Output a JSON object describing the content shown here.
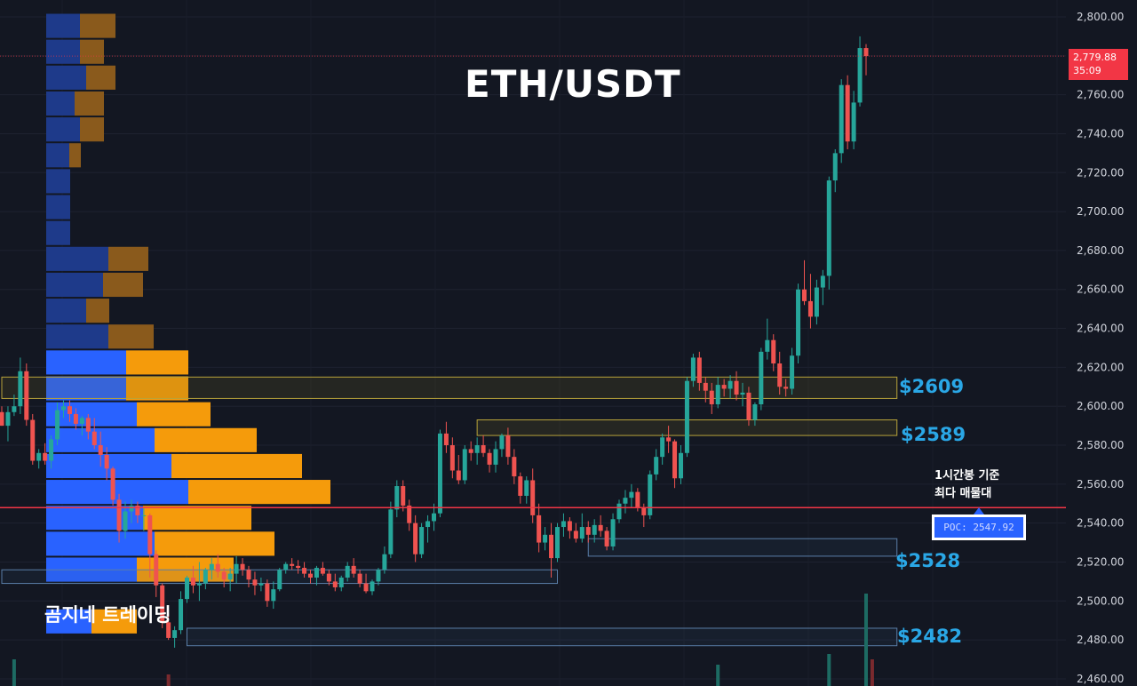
{
  "header": {
    "title": "ETH/USDT"
  },
  "watermark": {
    "brand": "곰지네 트레이딩"
  },
  "price_tag": {
    "price": "2,779.88",
    "countdown": "35:09"
  },
  "poc": {
    "label": "POC: 2547.92",
    "note_line1": "1시간봉 기준",
    "note_line2": "최다 매물대"
  },
  "levels": [
    {
      "label": "$2609",
      "value": 2609
    },
    {
      "label": "$2589",
      "value": 2589
    },
    {
      "label": "$2528",
      "value": 2528
    },
    {
      "label": "$2482",
      "value": 2482
    }
  ],
  "colors": {
    "background": "#131722",
    "up": "#26a69a",
    "down": "#ef5350",
    "poc_line": "#f23645",
    "level_text": "#2aa7e6",
    "profile_blue": "#2962ff",
    "profile_orange": "#f59b0b"
  },
  "chart_data": {
    "type": "candlestick",
    "title": "ETH/USDT",
    "y_axis": {
      "ticks": [
        "2,800.00",
        "2,780.00",
        "2,760.00",
        "2,740.00",
        "2,720.00",
        "2,700.00",
        "2,680.00",
        "2,660.00",
        "2,640.00",
        "2,620.00",
        "2,600.00",
        "2,580.00",
        "2,560.00",
        "2,540.00",
        "2,520.00",
        "2,500.00",
        "2,480.00",
        "2,460.00"
      ],
      "ylim": [
        2456,
        2806
      ]
    },
    "last_price": 2779.88,
    "poc_price": 2547.92,
    "volume_profile": {
      "price_step": 13.3,
      "rows": [
        {
          "price": 2795.4,
          "up": 38,
          "down": 40
        },
        {
          "price": 2782.1,
          "up": 38,
          "down": 27
        },
        {
          "price": 2768.8,
          "up": 45,
          "down": 33
        },
        {
          "price": 2755.5,
          "up": 32,
          "down": 33
        },
        {
          "price": 2742.2,
          "up": 38,
          "down": 27
        },
        {
          "price": 2728.9,
          "up": 26,
          "down": 13
        },
        {
          "price": 2715.6,
          "up": 27,
          "down": 0
        },
        {
          "price": 2702.3,
          "up": 27,
          "down": 0
        },
        {
          "price": 2689.0,
          "up": 27,
          "down": 0
        },
        {
          "price": 2675.7,
          "up": 70,
          "down": 45
        },
        {
          "price": 2662.4,
          "up": 64,
          "down": 45
        },
        {
          "price": 2649.1,
          "up": 45,
          "down": 26
        },
        {
          "price": 2635.8,
          "up": 70,
          "down": 51
        },
        {
          "price": 2622.5,
          "up": 90,
          "down": 70
        },
        {
          "price": 2609.2,
          "up": 90,
          "down": 70
        },
        {
          "price": 2595.9,
          "up": 102,
          "down": 83
        },
        {
          "price": 2582.6,
          "up": 122,
          "down": 115
        },
        {
          "price": 2569.3,
          "up": 141,
          "down": 147
        },
        {
          "price": 2556.0,
          "up": 160,
          "down": 160
        },
        {
          "price": 2542.7,
          "up": 109,
          "down": 122
        },
        {
          "price": 2529.4,
          "up": 122,
          "down": 135
        },
        {
          "price": 2516.1,
          "up": 102,
          "down": 109
        },
        {
          "price": 2502.8,
          "up": 0,
          "down": 0
        },
        {
          "price": 2489.5,
          "up": 51,
          "down": 51
        }
      ]
    },
    "zones": [
      {
        "low": 2604,
        "high": 2615,
        "start_bar": 0,
        "end_bar": 145
      },
      {
        "low": 2585,
        "high": 2593,
        "start_bar": 77,
        "end_bar": 145
      },
      {
        "low": 2523,
        "high": 2532,
        "start_bar": 95,
        "end_bar": 145
      },
      {
        "low": 2509,
        "high": 2516,
        "start_bar": 0,
        "end_bar": 90
      },
      {
        "low": 2477,
        "high": 2486,
        "start_bar": 30,
        "end_bar": 145
      }
    ],
    "ohlc": [
      [
        2597,
        2600,
        2590,
        2590
      ],
      [
        2590,
        2600,
        2582,
        2597
      ],
      [
        2597,
        2606,
        2595,
        2600
      ],
      [
        2600,
        2625,
        2596,
        2618
      ],
      [
        2618,
        2622,
        2590,
        2593
      ],
      [
        2593,
        2596,
        2570,
        2572
      ],
      [
        2572,
        2578,
        2568,
        2576
      ],
      [
        2576,
        2581,
        2570,
        2572
      ],
      [
        2572,
        2585,
        2568,
        2583
      ],
      [
        2583,
        2602,
        2580,
        2598
      ],
      [
        2598,
        2603,
        2594,
        2600
      ],
      [
        2600,
        2603,
        2592,
        2596
      ],
      [
        2596,
        2599,
        2588,
        2591
      ],
      [
        2591,
        2595,
        2585,
        2594
      ],
      [
        2594,
        2596,
        2583,
        2587
      ],
      [
        2587,
        2594,
        2578,
        2580
      ],
      [
        2580,
        2587,
        2569,
        2575
      ],
      [
        2575,
        2579,
        2562,
        2568
      ],
      [
        2568,
        2569,
        2549,
        2552
      ],
      [
        2552,
        2555,
        2530,
        2536
      ],
      [
        2536,
        2551,
        2532,
        2546
      ],
      [
        2546,
        2552,
        2540,
        2549
      ],
      [
        2549,
        2551,
        2540,
        2544
      ],
      [
        2544,
        2548,
        2536,
        2544
      ],
      [
        2544,
        2545,
        2512,
        2524
      ],
      [
        2524,
        2526,
        2502,
        2508
      ],
      [
        2508,
        2509,
        2486,
        2489
      ],
      [
        2489,
        2494,
        2480,
        2481
      ],
      [
        2481,
        2487,
        2476,
        2485
      ],
      [
        2485,
        2505,
        2483,
        2501
      ],
      [
        2501,
        2513,
        2499,
        2512
      ],
      [
        2512,
        2518,
        2504,
        2508
      ],
      [
        2508,
        2520,
        2500,
        2509
      ],
      [
        2509,
        2517,
        2506,
        2516
      ],
      [
        2516,
        2522,
        2511,
        2519
      ],
      [
        2519,
        2524,
        2512,
        2515
      ],
      [
        2515,
        2517,
        2507,
        2511
      ],
      [
        2511,
        2517,
        2505,
        2514
      ],
      [
        2514,
        2523,
        2509,
        2519
      ],
      [
        2519,
        2522,
        2513,
        2516
      ],
      [
        2516,
        2518,
        2507,
        2511
      ],
      [
        2511,
        2515,
        2503,
        2508
      ],
      [
        2508,
        2512,
        2505,
        2509
      ],
      [
        2509,
        2511,
        2497,
        2500
      ],
      [
        2500,
        2510,
        2496,
        2506
      ],
      [
        2506,
        2517,
        2505,
        2516
      ],
      [
        2516,
        2520,
        2514,
        2519
      ],
      [
        2519,
        2522,
        2516,
        2518
      ],
      [
        2518,
        2521,
        2514,
        2517
      ],
      [
        2517,
        2520,
        2512,
        2514
      ],
      [
        2514,
        2516,
        2509,
        2512
      ],
      [
        2512,
        2518,
        2508,
        2517
      ],
      [
        2517,
        2520,
        2513,
        2514
      ],
      [
        2514,
        2516,
        2508,
        2510
      ],
      [
        2510,
        2514,
        2505,
        2507
      ],
      [
        2507,
        2513,
        2505,
        2512
      ],
      [
        2512,
        2520,
        2510,
        2518
      ],
      [
        2518,
        2522,
        2512,
        2514
      ],
      [
        2514,
        2516,
        2507,
        2509
      ],
      [
        2509,
        2514,
        2504,
        2505
      ],
      [
        2505,
        2511,
        2503,
        2510
      ],
      [
        2510,
        2517,
        2508,
        2516
      ],
      [
        2516,
        2528,
        2514,
        2524
      ],
      [
        2524,
        2551,
        2522,
        2547
      ],
      [
        2547,
        2562,
        2543,
        2559
      ],
      [
        2559,
        2562,
        2546,
        2549
      ],
      [
        2549,
        2552,
        2536,
        2540
      ],
      [
        2540,
        2544,
        2520,
        2524
      ],
      [
        2524,
        2540,
        2522,
        2538
      ],
      [
        2538,
        2544,
        2530,
        2541
      ],
      [
        2541,
        2550,
        2536,
        2545
      ],
      [
        2545,
        2588,
        2543,
        2586
      ],
      [
        2586,
        2592,
        2576,
        2580
      ],
      [
        2580,
        2584,
        2563,
        2567
      ],
      [
        2567,
        2575,
        2560,
        2562
      ],
      [
        2562,
        2580,
        2560,
        2578
      ],
      [
        2578,
        2582,
        2572,
        2576
      ],
      [
        2576,
        2584,
        2570,
        2580
      ],
      [
        2580,
        2585,
        2574,
        2576
      ],
      [
        2576,
        2578,
        2566,
        2570
      ],
      [
        2570,
        2582,
        2566,
        2578
      ],
      [
        2578,
        2586,
        2574,
        2585
      ],
      [
        2585,
        2589,
        2570,
        2574
      ],
      [
        2574,
        2578,
        2560,
        2564
      ],
      [
        2564,
        2566,
        2550,
        2554
      ],
      [
        2554,
        2564,
        2550,
        2562
      ],
      [
        2562,
        2568,
        2540,
        2544
      ],
      [
        2544,
        2550,
        2525,
        2530
      ],
      [
        2530,
        2538,
        2526,
        2534
      ],
      [
        2534,
        2540,
        2512,
        2522
      ],
      [
        2522,
        2540,
        2520,
        2538
      ],
      [
        2538,
        2545,
        2533,
        2541
      ],
      [
        2541,
        2543,
        2532,
        2536
      ],
      [
        2536,
        2540,
        2530,
        2532
      ],
      [
        2532,
        2545,
        2530,
        2538
      ],
      [
        2538,
        2541,
        2530,
        2534
      ],
      [
        2534,
        2542,
        2530,
        2539
      ],
      [
        2539,
        2544,
        2533,
        2536
      ],
      [
        2536,
        2538,
        2526,
        2528
      ],
      [
        2528,
        2545,
        2526,
        2542
      ],
      [
        2542,
        2552,
        2540,
        2550
      ],
      [
        2550,
        2557,
        2545,
        2553
      ],
      [
        2553,
        2560,
        2548,
        2556
      ],
      [
        2556,
        2558,
        2546,
        2548
      ],
      [
        2548,
        2550,
        2538,
        2544
      ],
      [
        2544,
        2567,
        2542,
        2565
      ],
      [
        2565,
        2578,
        2562,
        2574
      ],
      [
        2574,
        2586,
        2570,
        2584
      ],
      [
        2584,
        2590,
        2576,
        2582
      ],
      [
        2582,
        2583,
        2558,
        2563
      ],
      [
        2563,
        2580,
        2560,
        2576
      ],
      [
        2576,
        2615,
        2574,
        2613
      ],
      [
        2613,
        2627,
        2610,
        2625
      ],
      [
        2625,
        2628,
        2608,
        2612
      ],
      [
        2612,
        2615,
        2602,
        2608
      ],
      [
        2608,
        2612,
        2596,
        2601
      ],
      [
        2601,
        2615,
        2599,
        2611
      ],
      [
        2611,
        2614,
        2605,
        2609
      ],
      [
        2609,
        2616,
        2604,
        2613
      ],
      [
        2613,
        2618,
        2603,
        2606
      ],
      [
        2606,
        2612,
        2600,
        2607
      ],
      [
        2607,
        2610,
        2590,
        2593
      ],
      [
        2593,
        2602,
        2590,
        2601
      ],
      [
        2601,
        2630,
        2598,
        2628
      ],
      [
        2628,
        2645,
        2624,
        2634
      ],
      [
        2634,
        2637,
        2618,
        2622
      ],
      [
        2622,
        2628,
        2606,
        2610
      ],
      [
        2610,
        2614,
        2605,
        2609
      ],
      [
        2609,
        2630,
        2606,
        2626
      ],
      [
        2626,
        2663,
        2622,
        2660
      ],
      [
        2660,
        2675,
        2652,
        2654
      ],
      [
        2654,
        2668,
        2640,
        2646
      ],
      [
        2646,
        2665,
        2642,
        2661
      ],
      [
        2661,
        2670,
        2652,
        2667
      ],
      [
        2667,
        2718,
        2660,
        2716
      ],
      [
        2716,
        2732,
        2710,
        2730
      ],
      [
        2730,
        2768,
        2725,
        2765
      ],
      [
        2765,
        2770,
        2732,
        2736
      ],
      [
        2736,
        2762,
        2732,
        2756
      ],
      [
        2756,
        2790,
        2754,
        2784
      ],
      [
        2784,
        2786,
        2770,
        2779.88
      ]
    ]
  }
}
